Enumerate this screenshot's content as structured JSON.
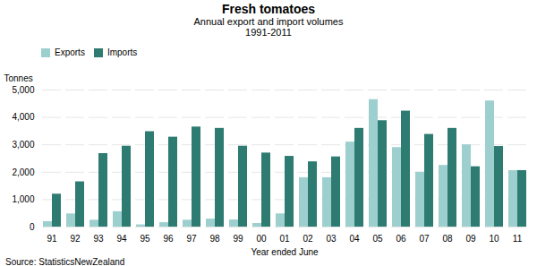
{
  "chart_data": {
    "type": "bar",
    "title": "Fresh tomatoes",
    "subtitle": [
      "Annual export and import volumes",
      "1991-2011"
    ],
    "caption": "Source: StatisticsNewZealand",
    "xlabel": "Year ended June",
    "ylabel": "Tonnes",
    "categories": [
      "91",
      "92",
      "93",
      "94",
      "95",
      "96",
      "97",
      "98",
      "99",
      "00",
      "01",
      "02",
      "03",
      "04",
      "05",
      "06",
      "07",
      "08",
      "09",
      "10",
      "11"
    ],
    "series": [
      {
        "name": "Exports",
        "color": "#9ecfcf",
        "values": [
          200,
          480,
          250,
          560,
          80,
          160,
          250,
          290,
          260,
          130,
          480,
          1800,
          1800,
          3100,
          4650,
          2900,
          2000,
          2250,
          3000,
          4600,
          2060
        ]
      },
      {
        "name": "Imports",
        "color": "#2e7b72",
        "values": [
          1200,
          1650,
          2680,
          2950,
          3480,
          3280,
          3650,
          3600,
          2950,
          2700,
          2580,
          2380,
          2560,
          3600,
          3880,
          4230,
          3380,
          3600,
          2200,
          2940,
          2060
        ]
      }
    ],
    "ylim": [
      0,
      5000
    ],
    "yticks": [
      0,
      {
        "value": 1000,
        "label": "1,000"
      },
      {
        "value": 2000,
        "label": "2,000"
      },
      {
        "value": 3000,
        "label": "3,000"
      },
      {
        "value": 4000,
        "label": "4,000"
      },
      {
        "value": 5000,
        "label": "5,000"
      }
    ],
    "grid": true,
    "legend": "upper left"
  }
}
